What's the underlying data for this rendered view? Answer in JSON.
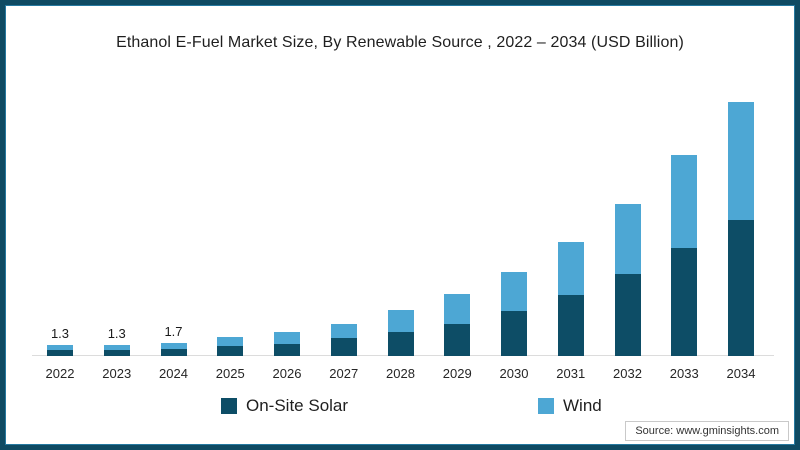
{
  "title": "Ethanol E-Fuel Market Size, By Renewable Source , 2022 – 2034 (USD Billion)",
  "source": "Source: www.gminsights.com",
  "colors": {
    "on_site_solar": "#0d4d66",
    "wind": "#4da7d4",
    "frame": "#0e4a63",
    "axis_line": "#dcdcdc"
  },
  "legend": {
    "items": [
      {
        "label": "On-Site Solar",
        "color_key": "on_site_solar"
      },
      {
        "label": "Wind",
        "color_key": "wind"
      }
    ]
  },
  "chart_data": {
    "type": "bar",
    "stacked": true,
    "title": "Ethanol E-Fuel Market Size, By Renewable Source , 2022 – 2034 (USD Billion)",
    "xlabel": "",
    "ylabel": "",
    "ylim": [
      0,
      32
    ],
    "grid": false,
    "legend_position": "bottom",
    "categories": [
      "2022",
      "2023",
      "2024",
      "2025",
      "2026",
      "2027",
      "2028",
      "2029",
      "2030",
      "2031",
      "2032",
      "2033",
      "2034"
    ],
    "series": [
      {
        "name": "On-Site Solar",
        "color_key": "on_site_solar",
        "values": [
          0.7,
          0.7,
          0.9,
          1.2,
          1.5,
          2.3,
          3.0,
          4.0,
          5.6,
          7.6,
          10.3,
          13.5,
          17.0
        ]
      },
      {
        "name": "Wind",
        "color_key": "wind",
        "values": [
          0.6,
          0.6,
          0.8,
          1.1,
          1.5,
          1.8,
          2.7,
          3.7,
          4.9,
          6.6,
          8.7,
          11.6,
          14.8
        ]
      }
    ],
    "totals": [
      1.3,
      1.3,
      1.7,
      2.3,
      3.0,
      4.1,
      5.7,
      7.7,
      10.5,
      14.2,
      19.0,
      25.1,
      31.8
    ],
    "bar_total_labels": [
      "1.3",
      "1.3",
      "1.7",
      "",
      "",
      "",
      "",
      "",
      "",
      "",
      "",
      "",
      ""
    ]
  }
}
